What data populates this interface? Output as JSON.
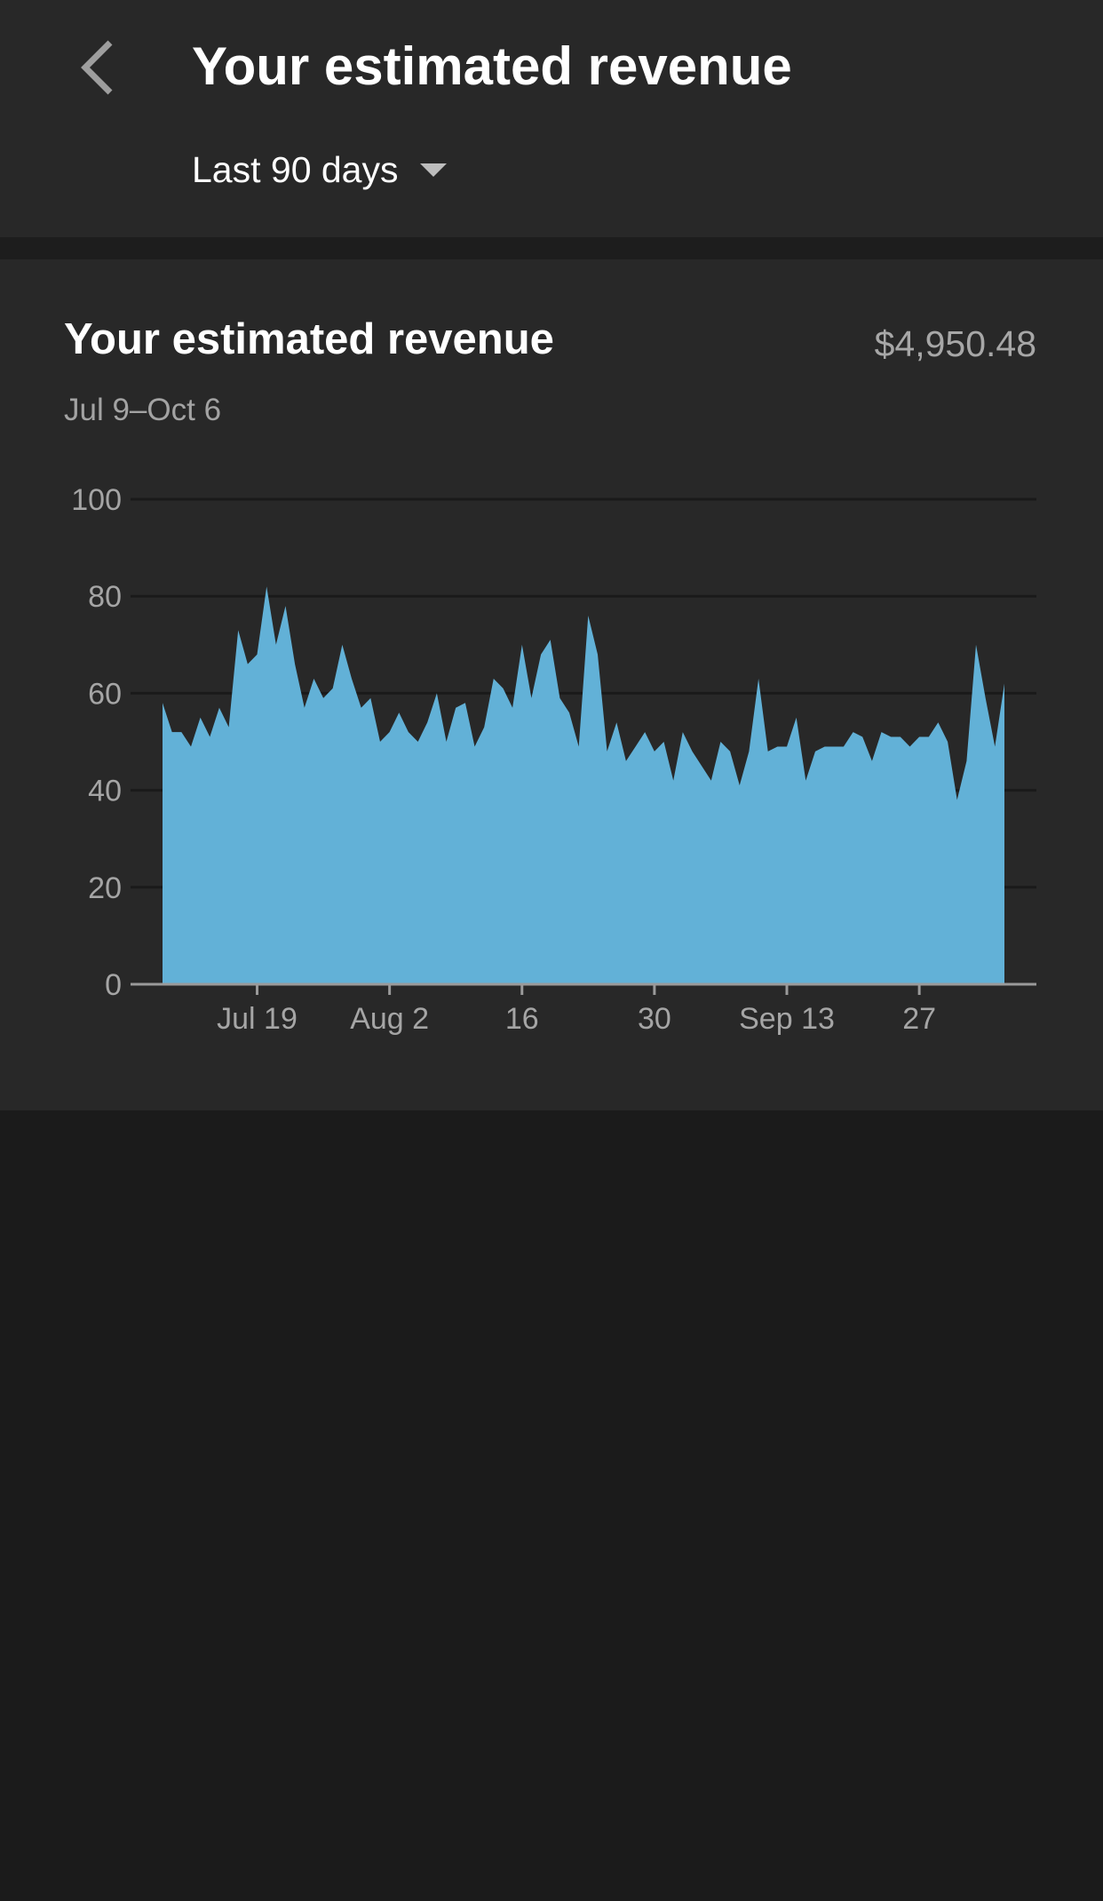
{
  "header": {
    "title": "Your estimated revenue",
    "back_icon": "chevron-left-icon",
    "range_label": "Last 90 days",
    "range_icon": "caret-down-icon"
  },
  "card": {
    "title": "Your estimated revenue",
    "total": "$4,950.48",
    "date_range": "Jul 9–Oct 6"
  },
  "colors": {
    "background": "#1b1b1b",
    "surface": "#282828",
    "area_fill": "#62b1d7",
    "text_primary": "#ffffff",
    "text_secondary": "#a5a5a5"
  },
  "chart_data": {
    "type": "area",
    "title": "",
    "xlabel": "",
    "ylabel": "",
    "ylim": [
      0,
      100
    ],
    "y_ticks": [
      "0",
      "20",
      "40",
      "60",
      "80",
      "100"
    ],
    "x_tick_labels": [
      "Jul 19",
      "Aug 2",
      "16",
      "30",
      "Sep 13",
      "27"
    ],
    "x_tick_dates": [
      "2019-07-19",
      "2019-08-02",
      "2019-08-16",
      "2019-08-30",
      "2019-09-13",
      "2019-09-27"
    ],
    "x_start": "2019-07-09",
    "x_end": "2019-10-06",
    "grid": true,
    "series": [
      {
        "values": [
          58,
          52,
          52,
          49,
          55,
          51,
          57,
          53,
          73,
          66,
          68,
          82,
          70,
          78,
          66,
          57,
          63,
          59,
          61,
          70,
          63,
          57,
          59,
          50,
          52,
          56,
          52,
          50,
          54,
          60,
          50,
          57,
          58,
          49,
          53,
          63,
          61,
          57,
          70,
          59,
          68,
          71,
          59,
          56,
          49,
          76,
          68,
          48,
          54,
          46,
          49,
          52,
          48,
          50,
          42,
          52,
          48,
          45,
          42,
          50,
          48,
          41,
          48,
          63,
          48,
          49,
          49,
          55,
          42,
          48,
          49,
          49,
          49,
          52,
          51,
          46,
          52,
          51,
          51,
          49,
          51,
          51,
          54,
          50,
          38,
          46,
          70,
          59,
          49,
          62
        ]
      }
    ]
  }
}
